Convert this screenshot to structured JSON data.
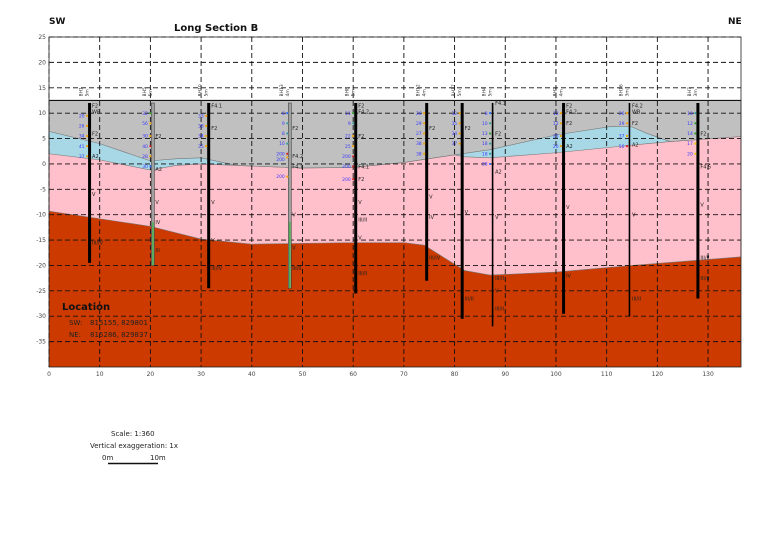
{
  "title": "Long Section B",
  "ends": {
    "left": "SW",
    "right": "NE"
  },
  "location": {
    "heading": "Location",
    "sw_label": "SW:",
    "sw_coords": "815155, 829801",
    "ne_label": "NE:",
    "ne_coords": "815286, 829837"
  },
  "scale": {
    "text": "Scale: 1:360",
    "exaggeration": "Vertical exaggeration: 1x",
    "bar_start": "0m",
    "bar_end": "10m"
  },
  "colors": {
    "made_ground": "#c0c0c0",
    "lens": "#a8d8e6",
    "upper": "#ffc0cb",
    "rock": "#cc3a00",
    "sample_text": "#3a3aff"
  },
  "chart_data": {
    "type": "section",
    "xlim": [
      0,
      136.5
    ],
    "ylim": [
      -40,
      25
    ],
    "x_ticks": [
      0,
      10,
      20,
      30,
      40,
      50,
      60,
      70,
      80,
      90,
      100,
      110,
      120,
      130
    ],
    "y_ticks": [
      25,
      20,
      15,
      10,
      5,
      0,
      -5,
      -10,
      -15,
      -20,
      -25,
      -30,
      -35
    ],
    "grid": true,
    "ground_level": 12.5,
    "boundaries": {
      "made_ground_base": [
        [
          0,
          6.4
        ],
        [
          10,
          4
        ],
        [
          20,
          0.6
        ],
        [
          25,
          1
        ],
        [
          30,
          1.2
        ],
        [
          37,
          -0.3
        ],
        [
          50,
          -0.8
        ],
        [
          60,
          -0.7
        ],
        [
          70,
          0.3
        ],
        [
          80,
          1.8
        ],
        [
          87,
          2.8
        ],
        [
          100,
          5.7
        ],
        [
          111,
          7.4
        ],
        [
          115,
          7.3
        ],
        [
          118,
          6
        ],
        [
          122.5,
          4.4
        ],
        [
          136.5,
          5.4
        ]
      ],
      "upper_top": [
        [
          0,
          2
        ],
        [
          10,
          0.8
        ],
        [
          20,
          -1.2
        ],
        [
          25,
          -0.3
        ],
        [
          30,
          0
        ],
        [
          37,
          -0.3
        ],
        [
          50,
          -0.8
        ],
        [
          60,
          -0.7
        ],
        [
          70,
          0.3
        ],
        [
          80,
          1.8
        ],
        [
          82,
          1.4
        ],
        [
          87,
          1.2
        ],
        [
          100,
          2.2
        ],
        [
          115,
          3.7
        ],
        [
          122.5,
          4.4
        ],
        [
          136.5,
          5.4
        ]
      ],
      "rock_top": [
        [
          0,
          -9.3
        ],
        [
          10,
          -10.8
        ],
        [
          20,
          -12.3
        ],
        [
          30,
          -14.8
        ],
        [
          40,
          -15.8
        ],
        [
          60,
          -15.5
        ],
        [
          70,
          -15.5
        ],
        [
          74,
          -16
        ],
        [
          78,
          -18.5
        ],
        [
          82,
          -21
        ],
        [
          87,
          -21.9
        ],
        [
          100,
          -21.3
        ],
        [
          115,
          -20
        ],
        [
          136.5,
          -18.3
        ]
      ]
    },
    "boreholes": [
      {
        "name": "BH1",
        "depth": "5m",
        "x": 8,
        "top": 12,
        "bottom": -19.5,
        "style": "solid",
        "samples": [
          [
            9.5,
            "20",
            "#f0a000"
          ],
          [
            7.5,
            "26",
            "#f0a000"
          ],
          [
            5.5,
            "34",
            "#f0a000"
          ],
          [
            3.5,
            "41",
            "#f0a000"
          ],
          [
            1.5,
            "37",
            "#f0a000"
          ]
        ],
        "codes": [
          [
            11.5,
            "F2"
          ],
          [
            10.5,
            "WB"
          ],
          [
            6,
            "F2"
          ],
          [
            1.5,
            "A2"
          ],
          [
            -6,
            "V"
          ],
          [
            -15.5,
            "III/IV"
          ]
        ]
      },
      {
        "name": "BH5",
        "depth": "5m",
        "x": 20.5,
        "top": 12,
        "bottom": -20,
        "style": "cased",
        "samples": [
          [
            10,
            "32",
            "#30a030"
          ],
          [
            8,
            "56",
            "#f0a000"
          ],
          [
            5.5,
            "30",
            "#f0a000"
          ],
          [
            3.5,
            "40",
            "#d02020"
          ],
          [
            1.5,
            "28",
            "#f0a000"
          ],
          [
            -0.5,
            "30",
            "#3070ff"
          ]
        ],
        "codes": [
          [
            5.5,
            "F2"
          ],
          [
            -1,
            "A2"
          ],
          [
            -7.5,
            "V"
          ],
          [
            -11.5,
            "IV"
          ],
          [
            -17,
            "III"
          ]
        ]
      },
      {
        "name": "BH10",
        "depth": "5m",
        "x": 31.5,
        "top": 12,
        "bottom": -24.5,
        "style": "solid",
        "samples": [
          [
            9.5,
            "33",
            "#f0a000"
          ],
          [
            7.5,
            "38",
            "#f0a000"
          ],
          [
            5.5,
            "34",
            "#f0a000"
          ],
          [
            3.5,
            "35",
            "#f0a000"
          ]
        ],
        "codes": [
          [
            11.5,
            "F4.1"
          ],
          [
            7,
            "F2"
          ],
          [
            -7.5,
            "V"
          ],
          [
            -15,
            "V"
          ],
          [
            -20.5,
            "III/IV"
          ]
        ]
      },
      {
        "name": "BH13",
        "depth": "4m",
        "x": 47.5,
        "top": 12,
        "bottom": -24.5,
        "style": "cased",
        "samples": [
          [
            10,
            "6",
            "#3070ff"
          ],
          [
            8,
            "9",
            "#30a0a0"
          ],
          [
            6,
            "8",
            "#30a0a0"
          ],
          [
            4,
            "10",
            "#30a0a0"
          ],
          [
            2,
            "200",
            "#d02020"
          ],
          [
            1.3,
            "200",
            "#f0a000"
          ],
          [
            -2.5,
            "200",
            "#f0a000"
          ]
        ],
        "codes": [
          [
            7,
            "F2"
          ],
          [
            1.5,
            "F4.2"
          ],
          [
            -0.5,
            "F4.1"
          ],
          [
            -10,
            "V"
          ],
          [
            -16.5,
            "V"
          ],
          [
            -20.5,
            "III/II"
          ]
        ]
      },
      {
        "name": "BH8",
        "depth": "5m",
        "x": 60.5,
        "top": 12,
        "bottom": -25.5,
        "style": "solid",
        "samples": [
          [
            10,
            "11",
            "#30a030"
          ],
          [
            8,
            "9",
            "#30a0a0"
          ],
          [
            5.5,
            "22",
            "#f0a000"
          ],
          [
            3.5,
            "25",
            "#f0a000"
          ],
          [
            1.5,
            "200",
            "#d02020"
          ],
          [
            -0.5,
            "200",
            "#d02020"
          ],
          [
            -3,
            "200",
            "#d02020"
          ]
        ],
        "codes": [
          [
            11.5,
            "F2"
          ],
          [
            10.7,
            "F4.2"
          ],
          [
            5.5,
            "F2"
          ],
          [
            -0.5,
            "F4.1"
          ],
          [
            -3,
            "F2"
          ],
          [
            -7.5,
            "V"
          ],
          [
            -11,
            "III/II"
          ],
          [
            -14.5,
            "V"
          ],
          [
            -21.5,
            "III/II"
          ]
        ]
      },
      {
        "name": "BH12",
        "depth": "4m",
        "x": 74.5,
        "top": 12,
        "bottom": -23,
        "style": "solid",
        "samples": [
          [
            10,
            "26",
            "#f0a000"
          ],
          [
            8,
            "29",
            "#f0a000"
          ],
          [
            6,
            "27",
            "#f0a000"
          ],
          [
            4,
            "38",
            "#f0a000"
          ],
          [
            2,
            "38",
            "#f0a000"
          ]
        ],
        "codes": [
          [
            7,
            "F2"
          ],
          [
            -6.5,
            "V"
          ],
          [
            -10.5,
            "IV"
          ],
          [
            -18.5,
            "III/IV"
          ]
        ]
      },
      {
        "name": "BH17",
        "depth": "5m",
        "x": 81.5,
        "top": 12,
        "bottom": -30.5,
        "style": "solid",
        "samples": [
          [
            10,
            "32",
            "#f0a000"
          ],
          [
            8,
            "35",
            "#f0a000"
          ],
          [
            6,
            "34",
            "#f0a000"
          ],
          [
            4,
            "37",
            "#f0a000"
          ]
        ],
        "codes": [
          [
            7,
            "F2"
          ],
          [
            -9.5,
            "V"
          ],
          [
            -26.5,
            "III/II"
          ]
        ]
      },
      {
        "name": "BH4",
        "depth": "5m",
        "x": 87.5,
        "top": 12,
        "bottom": -32,
        "style": "thin",
        "samples": [
          [
            10,
            "8",
            "#3070ff"
          ],
          [
            8,
            "10",
            "#30a0a0"
          ],
          [
            6,
            "13",
            "#30a030"
          ],
          [
            4,
            "18",
            "#30a0a0"
          ],
          [
            2,
            "18",
            "#30a0a0"
          ],
          [
            0,
            "28",
            "#3070ff"
          ]
        ],
        "codes": [
          [
            12,
            "F4.1"
          ],
          [
            6,
            "F2"
          ],
          [
            -1.5,
            "A2"
          ],
          [
            -10.5,
            "V"
          ],
          [
            -22.5,
            "III/II"
          ],
          [
            -25,
            "V"
          ],
          [
            -28.5,
            "III/II"
          ]
        ]
      },
      {
        "name": "BH2",
        "depth": "4m",
        "x": 101.5,
        "top": 12,
        "bottom": -29.5,
        "style": "solid",
        "samples": [
          [
            10,
            "12",
            "#f0a000"
          ],
          [
            8,
            "12",
            "#f0a000"
          ],
          [
            5.5,
            "25",
            "#f0a000"
          ],
          [
            3.5,
            "20",
            "#f0a000"
          ]
        ],
        "codes": [
          [
            11.5,
            "F2"
          ],
          [
            10.5,
            "F4.2"
          ],
          [
            8,
            "F2"
          ],
          [
            3.5,
            "A2"
          ],
          [
            -8.5,
            "V"
          ],
          [
            -22,
            "IV"
          ]
        ]
      },
      {
        "name": "BH16",
        "depth": "3m",
        "x": 114.5,
        "top": 12,
        "bottom": -30,
        "style": "thin",
        "samples": [
          [
            10,
            "26",
            "#f0a000"
          ],
          [
            8,
            "29",
            "#f0a000"
          ],
          [
            5.5,
            "37",
            "#f0a000"
          ],
          [
            3.5,
            "56",
            "#d02020"
          ]
        ],
        "codes": [
          [
            11.5,
            "F4.2"
          ],
          [
            10.5,
            "WB"
          ],
          [
            8,
            "F2"
          ],
          [
            3.8,
            "A2"
          ],
          [
            -10,
            "V"
          ],
          [
            -26.5,
            "III/II"
          ]
        ]
      },
      {
        "name": "BH7",
        "depth": "3m",
        "x": 128,
        "top": 12,
        "bottom": -26.5,
        "style": "solid",
        "samples": [
          [
            10,
            "10",
            "#30a0a0"
          ],
          [
            8,
            "12",
            "#30a030"
          ],
          [
            6,
            "14",
            "#30a030"
          ],
          [
            4,
            "17",
            "#e0d000"
          ],
          [
            2,
            "20",
            "#e0d000"
          ]
        ],
        "codes": [
          [
            6,
            "F2"
          ],
          [
            -0.5,
            "F4.5"
          ],
          [
            -8,
            "V"
          ],
          [
            -18.5,
            "III/II"
          ],
          [
            -22.5,
            "III/II"
          ]
        ]
      }
    ]
  }
}
